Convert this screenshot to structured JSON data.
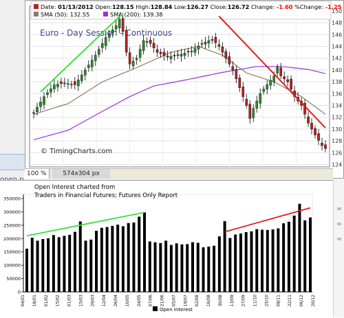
{
  "colors": {
    "up": "#2e8b2e",
    "down": "#b22222",
    "sma50": "#8b7d60",
    "sma200": "#9b30d9",
    "green_trend": "#3ce03c",
    "red_trend": "#e41c1c",
    "title": "#3b4a8c",
    "oi_bar": "#000000"
  },
  "left_tab": {
    "label": "open p"
  },
  "status_bar": {
    "zoom": "100 %",
    "dimensions": "574x304 px"
  },
  "chart_data": [
    {
      "type": "candlestick",
      "title": "Euro - Day Session - Continuous",
      "watermark": "© TimingCharts.com",
      "header": {
        "date_label": "Date:",
        "date": "01/13/2012",
        "open_label": "Open:",
        "open": "128.15",
        "high_label": "High:",
        "high": "128.84",
        "low_label": "Low:",
        "low": "126.27",
        "close_label": "Close:",
        "close": "126.72",
        "change_label": "Change:",
        "change": "-1.60",
        "pct_change_label": "%Change:",
        "pct_change": "-1.25"
      },
      "legend": [
        {
          "name": "SMA (50):",
          "value": "132.55"
        },
        {
          "name": "SMA (200):",
          "value": "139.38"
        }
      ],
      "y_ticks": [
        124,
        126,
        128,
        130,
        132,
        134,
        136,
        138,
        140,
        142,
        144,
        146,
        148,
        150
      ],
      "ylim": [
        123.6,
        150.8
      ],
      "y_axis_position": "right",
      "grid": true,
      "n_bars": 86,
      "close_keypoints": [
        [
          0,
          132.8
        ],
        [
          3,
          135.5
        ],
        [
          6,
          137.5
        ],
        [
          9,
          137.8
        ],
        [
          12,
          137.5
        ],
        [
          15,
          140
        ],
        [
          18,
          142.5
        ],
        [
          21,
          145.5
        ],
        [
          24,
          147.5
        ],
        [
          25,
          148.6
        ],
        [
          26,
          146.5
        ],
        [
          27,
          143
        ],
        [
          28,
          141
        ],
        [
          30,
          142
        ],
        [
          32,
          145
        ],
        [
          34,
          144.5
        ],
        [
          36,
          143
        ],
        [
          39,
          142.2
        ],
        [
          42,
          142.5
        ],
        [
          46,
          143.2
        ],
        [
          49,
          144.5
        ],
        [
          52,
          145.2
        ],
        [
          54,
          144
        ],
        [
          56,
          142
        ],
        [
          58,
          140
        ],
        [
          60,
          137
        ],
        [
          62,
          134
        ],
        [
          63,
          131.8
        ],
        [
          64,
          133.5
        ],
        [
          66,
          136
        ],
        [
          68,
          137.5
        ],
        [
          70,
          139
        ],
        [
          71,
          140.5
        ],
        [
          72,
          139
        ],
        [
          74,
          138
        ],
        [
          76,
          135.5
        ],
        [
          78,
          134
        ],
        [
          80,
          131
        ],
        [
          82,
          129
        ],
        [
          84,
          127.2
        ],
        [
          85,
          126.7
        ]
      ],
      "sma50_keypoints": [
        [
          0,
          132.5
        ],
        [
          10,
          134.3
        ],
        [
          20,
          138
        ],
        [
          30,
          140.4
        ],
        [
          40,
          143
        ],
        [
          48,
          144
        ],
        [
          55,
          142.5
        ],
        [
          62,
          139.5
        ],
        [
          70,
          138
        ],
        [
          78,
          135.5
        ],
        [
          85,
          132.5
        ]
      ],
      "sma200_keypoints": [
        [
          0,
          128.2
        ],
        [
          10,
          129.8
        ],
        [
          20,
          133
        ],
        [
          28,
          135.5
        ],
        [
          35,
          137.3
        ],
        [
          45,
          138.4
        ],
        [
          55,
          139.6
        ],
        [
          65,
          140.6
        ],
        [
          72,
          140.6
        ],
        [
          80,
          140.1
        ],
        [
          85,
          139.4
        ]
      ],
      "trendlines": [
        {
          "color_key": "green_trend",
          "from": [
            2,
            136.3
          ],
          "to": [
            26,
            149.6
          ]
        },
        {
          "color_key": "red_trend",
          "from": [
            54,
            149.1
          ],
          "to": [
            85,
            130.2
          ]
        }
      ]
    },
    {
      "type": "bar",
      "title_lines": [
        "Open Interest charted from",
        "Traders in Financial Futures; Futures Only Report"
      ],
      "legend": "Open Interest",
      "y_ticks": [
        0,
        50000,
        100000,
        150000,
        200000,
        250000,
        300000,
        350000
      ],
      "ylim": [
        0,
        350000
      ],
      "grid": false,
      "values": [
        162000,
        203000,
        192000,
        198000,
        201000,
        213000,
        205000,
        210000,
        214000,
        225000,
        264000,
        192000,
        196000,
        229000,
        240000,
        243000,
        247000,
        252000,
        246000,
        258000,
        260000,
        282000,
        298000,
        189000,
        186000,
        183000,
        192000,
        176000,
        182000,
        178000,
        179000,
        186000,
        184000,
        167000,
        170000,
        173000,
        208000,
        265000,
        202000,
        215000,
        219000,
        224000,
        227000,
        235000,
        233000,
        232000,
        234000,
        238000,
        257000,
        263000,
        286000,
        330000,
        268000,
        279000
      ],
      "x_tick_labels": [
        "04/01",
        "18/01",
        "01/02",
        "15/02",
        "01/03",
        "15/03",
        "29/03",
        "12/04",
        "26/04",
        "10/05",
        "24/05",
        "07/06",
        "21/06",
        "05/07",
        "19/07",
        "02/08",
        "16/08",
        "30/08",
        "13/09",
        "27/09",
        "11/10",
        "25/10",
        "08/11",
        "22/11",
        "06/12",
        "20/12"
      ],
      "trendlines": [
        {
          "color_key": "green_trend",
          "from": [
            0,
            210000
          ],
          "to": [
            22,
            298000
          ]
        },
        {
          "color_key": "red_trend",
          "from": [
            37,
            225000
          ],
          "to": [
            53,
            315000
          ]
        }
      ]
    }
  ]
}
